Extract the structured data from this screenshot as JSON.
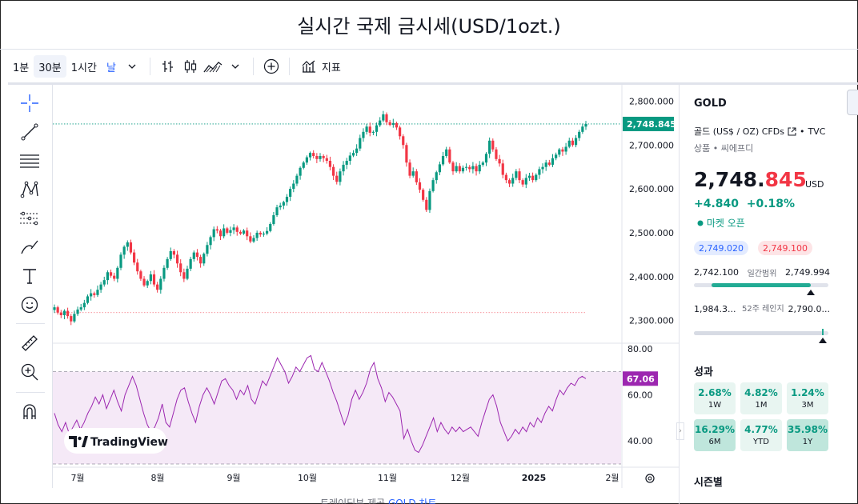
{
  "page": {
    "title": "실시간 국제 금시세(USD/1ozt.)"
  },
  "toolbar": {
    "interval_1m": "1분",
    "interval_30m": "30분",
    "interval_1h": "1시간",
    "interval_day": "날",
    "indicators_label": "지표"
  },
  "chart_data": {
    "type": "candlestick",
    "y_ticks": [
      "2,800.000",
      "2,700.000",
      "2,600.000",
      "2,500.000",
      "2,400.000",
      "2,300.000"
    ],
    "y_tick_values": [
      2800,
      2700,
      2600,
      2500,
      2400,
      2300
    ],
    "ylim": [
      2250,
      2830
    ],
    "x_ticks": [
      "7월",
      "8월",
      "9월",
      "10월",
      "11월",
      "12월",
      "2025",
      "2월"
    ],
    "last_price_label": "2,748.845",
    "reference_line_value": 2318,
    "price_close_series": [
      2330,
      2318,
      2312,
      2322,
      2310,
      2298,
      2315,
      2325,
      2330,
      2340,
      2355,
      2362,
      2358,
      2370,
      2382,
      2392,
      2410,
      2402,
      2395,
      2420,
      2450,
      2468,
      2478,
      2455,
      2432,
      2412,
      2395,
      2380,
      2390,
      2405,
      2382,
      2370,
      2395,
      2420,
      2440,
      2458,
      2450,
      2430,
      2410,
      2395,
      2418,
      2440,
      2455,
      2445,
      2430,
      2452,
      2472,
      2490,
      2508,
      2505,
      2492,
      2510,
      2500,
      2506,
      2512,
      2502,
      2498,
      2505,
      2492,
      2480,
      2488,
      2500,
      2496,
      2498,
      2504,
      2520,
      2540,
      2558,
      2562,
      2570,
      2582,
      2600,
      2612,
      2630,
      2648,
      2660,
      2672,
      2682,
      2675,
      2668,
      2675,
      2670,
      2664,
      2650,
      2630,
      2616,
      2640,
      2655,
      2664,
      2676,
      2682,
      2692,
      2716,
      2730,
      2742,
      2728,
      2730,
      2745,
      2756,
      2770,
      2752,
      2746,
      2750,
      2740,
      2720,
      2700,
      2660,
      2630,
      2640,
      2615,
      2598,
      2575,
      2552,
      2595,
      2620,
      2638,
      2656,
      2675,
      2690,
      2660,
      2640,
      2652,
      2640,
      2648,
      2650,
      2645,
      2652,
      2640,
      2655,
      2660,
      2680,
      2710,
      2690,
      2668,
      2658,
      2632,
      2620,
      2612,
      2625,
      2640,
      2620,
      2610,
      2625,
      2630,
      2620,
      2632,
      2645,
      2650,
      2660,
      2655,
      2670,
      2678,
      2690,
      2685,
      2696,
      2710,
      2700,
      2716,
      2730,
      2742,
      2748
    ],
    "rsi": {
      "label": "67.06",
      "y_ticks": [
        "80.00",
        "60.00",
        "40.00"
      ],
      "y_tick_values": [
        80,
        60,
        40
      ],
      "ylim": [
        30,
        82
      ],
      "band": [
        70,
        30
      ],
      "values": [
        52,
        47,
        44,
        48,
        43,
        46,
        49,
        45,
        48,
        52,
        55,
        59,
        56,
        60,
        54,
        58,
        62,
        57,
        53,
        60,
        64,
        68,
        64,
        58,
        52,
        47,
        44,
        46,
        50,
        56,
        48,
        46,
        52,
        58,
        62,
        63,
        57,
        52,
        48,
        55,
        60,
        63,
        60,
        56,
        61,
        66,
        67,
        64,
        62,
        58,
        62,
        60,
        64,
        58,
        56,
        61,
        66,
        64,
        68,
        72,
        76,
        73,
        70,
        65,
        68,
        72,
        70,
        73,
        76,
        77,
        71,
        70,
        74,
        70,
        66,
        61,
        57,
        52,
        47,
        51,
        58,
        62,
        58,
        61,
        65,
        71,
        74,
        67,
        63,
        57,
        61,
        59,
        56,
        53,
        41,
        45,
        40,
        36,
        35,
        38,
        42,
        46,
        50,
        44,
        48,
        45,
        43,
        46,
        44,
        46,
        44,
        45,
        46,
        44,
        42,
        48,
        53,
        58,
        60,
        55,
        48,
        44,
        40,
        42,
        45,
        43,
        46,
        44,
        48,
        46,
        50,
        48,
        52,
        55,
        53,
        58,
        62,
        60,
        63,
        65,
        64,
        67,
        68,
        67
      ]
    }
  },
  "watermark": {
    "brand": "TradingView"
  },
  "panel": {
    "symbol": "GOLD",
    "description": "골드 (US$ / OZ) CFDs",
    "exchange": "TVC",
    "category": "상품 • 씨에프디",
    "price_main": "2,748.",
    "price_tail": "845",
    "currency": "USD",
    "change_abs": "+4.840",
    "change_pct": "+0.18%",
    "market_status": "마켓 오픈",
    "bid": "2,749.020",
    "ask": "2,749.100",
    "day_low": "2,742.100",
    "day_label": "일간범위",
    "day_high": "2,749.994",
    "day_range_fraction": 0.87,
    "w52_low": "1,984.3...",
    "w52_label": "52주 레인지",
    "w52_high": "2,790.0...",
    "w52_range_fraction": 0.95,
    "perf_title": "성과",
    "perf": [
      {
        "value": "2.68%",
        "period": "1W"
      },
      {
        "value": "4.82%",
        "period": "1M"
      },
      {
        "value": "1.24%",
        "period": "3M"
      },
      {
        "value": "16.29%",
        "period": "6M"
      },
      {
        "value": "4.77%",
        "period": "YTD"
      },
      {
        "value": "35.98%",
        "period": "1Y"
      }
    ],
    "seasonals_title": "시즌별"
  },
  "footer": {
    "prefix": "트레이딩뷰 제공",
    "link": "GOLD 차트"
  },
  "colors": {
    "up": "#089981",
    "down": "#f23645",
    "rsi": "#9c27b0",
    "accent": "#2962ff"
  }
}
